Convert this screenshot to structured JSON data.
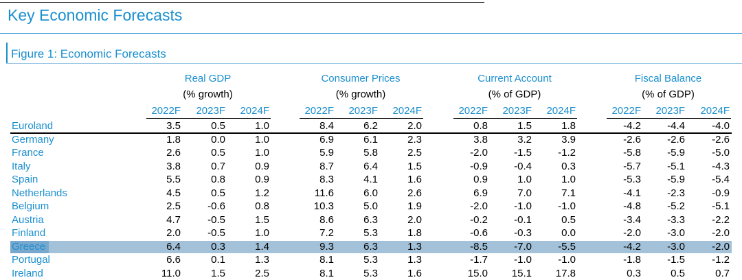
{
  "header": {
    "title": "Key Economic Forecasts"
  },
  "figure": {
    "title": "Figure 1: Economic Forecasts"
  },
  "table": {
    "groups": [
      {
        "title": "Real GDP",
        "unit": "(% growth)"
      },
      {
        "title": "Consumer Prices",
        "unit": "(% growth)"
      },
      {
        "title": "Current Account",
        "unit": "(% of GDP)"
      },
      {
        "title": "Fiscal Balance",
        "unit": "(% of GDP)"
      }
    ],
    "years": [
      "2022F",
      "2023F",
      "2024F",
      "2022F",
      "2023F",
      "2024F",
      "2022F",
      "2023F",
      "2024F",
      "2022F",
      "2023F",
      "2024F"
    ],
    "rows": [
      {
        "label": "Euroland",
        "values": [
          "3.5",
          "0.5",
          "1.0",
          "8.4",
          "6.2",
          "2.0",
          "0.8",
          "1.5",
          "1.8",
          "-4.2",
          "-4.4",
          "-4.0"
        ]
      },
      {
        "label": "Germany",
        "values": [
          "1.8",
          "0.0",
          "1.0",
          "6.9",
          "6.1",
          "2.3",
          "3.8",
          "3.2",
          "3.9",
          "-2.6",
          "-2.6",
          "-2.6"
        ]
      },
      {
        "label": "France",
        "values": [
          "2.6",
          "0.5",
          "1.0",
          "5.9",
          "5.8",
          "2.5",
          "-2.0",
          "-1.5",
          "-1.2",
          "-5.8",
          "-5.9",
          "-5.0"
        ]
      },
      {
        "label": "Italy",
        "values": [
          "3.8",
          "0.7",
          "0.9",
          "8.7",
          "6.4",
          "1.5",
          "-0.9",
          "-0.4",
          "0.3",
          "-5.7",
          "-5.1",
          "-4.3"
        ]
      },
      {
        "label": "Spain",
        "values": [
          "5.5",
          "0.8",
          "0.9",
          "8.3",
          "4.1",
          "1.6",
          "0.9",
          "1.0",
          "1.0",
          "-5.3",
          "-5.9",
          "-5.4"
        ]
      },
      {
        "label": "Netherlands",
        "values": [
          "4.5",
          "0.5",
          "1.2",
          "11.6",
          "6.0",
          "2.6",
          "6.9",
          "7.0",
          "7.1",
          "-4.1",
          "-2.3",
          "-0.9"
        ]
      },
      {
        "label": "Belgium",
        "values": [
          "2.5",
          "-0.6",
          "0.8",
          "10.3",
          "5.0",
          "1.9",
          "-2.0",
          "-1.0",
          "-1.0",
          "-4.8",
          "-5.2",
          "-5.1"
        ]
      },
      {
        "label": "Austria",
        "values": [
          "4.7",
          "-0.5",
          "1.5",
          "8.6",
          "6.3",
          "2.0",
          "-0.2",
          "-0.1",
          "0.5",
          "-3.4",
          "-3.3",
          "-2.2"
        ]
      },
      {
        "label": "Finland",
        "values": [
          "2.0",
          "-0.5",
          "1.0",
          "7.2",
          "5.3",
          "1.8",
          "-0.6",
          "-0.3",
          "0.0",
          "-2.0",
          "-3.0",
          "-2.0"
        ]
      },
      {
        "label": "Greece",
        "values": [
          "6.4",
          "0.3",
          "1.4",
          "9.3",
          "6.3",
          "1.3",
          "-8.5",
          "-7.0",
          "-5.5",
          "-4.2",
          "-3.0",
          "-2.0"
        ]
      },
      {
        "label": "Portugal",
        "values": [
          "6.6",
          "0.1",
          "1.3",
          "8.1",
          "5.3",
          "1.3",
          "-1.7",
          "-1.0",
          "-1.0",
          "-1.8",
          "-1.5",
          "-1.2"
        ]
      },
      {
        "label": "Ireland",
        "values": [
          "11.0",
          "1.5",
          "2.5",
          "8.1",
          "5.3",
          "1.6",
          "15.0",
          "15.1",
          "17.8",
          "0.3",
          "0.5",
          "0.7"
        ]
      }
    ]
  }
}
